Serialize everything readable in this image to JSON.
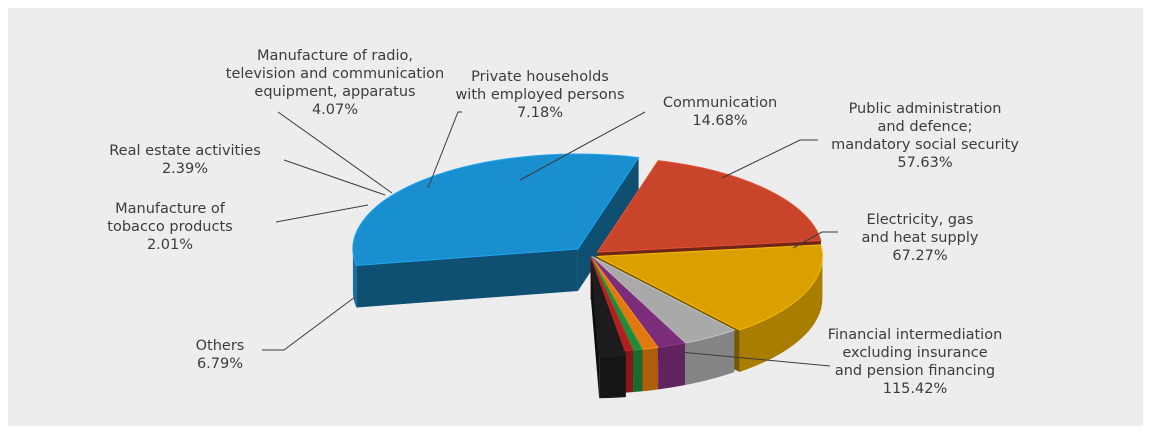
{
  "chart_data": {
    "type": "pie",
    "title": "",
    "legend": "none",
    "slices": [
      {
        "label": "Financial intermediation\nexcluding insurance\nand pension financing",
        "value_label": "115.42%",
        "value": 115.42,
        "color": "#1a8fd0"
      },
      {
        "label": "Electricity, gas\nand heat supply",
        "value_label": "67.27%",
        "value": 67.27,
        "color": "#c8452b"
      },
      {
        "label": "Public administration\nand defence;\nmandatory social security",
        "value_label": "57.63%",
        "value": 57.63,
        "color": "#d9a000"
      },
      {
        "label": "Communication",
        "value_label": "14.68%",
        "value": 14.68,
        "color": "#a9a9a9"
      },
      {
        "label": "Private households\nwith employed persons",
        "value_label": "7.18%",
        "value": 7.18,
        "color": "#7b2d7a"
      },
      {
        "label": "Manufacture of radio,\ntelevision and communication\nequipment, apparatus",
        "value_label": "4.07%",
        "value": 4.07,
        "color": "#e07a10"
      },
      {
        "label": "Real estate activities",
        "value_label": "2.39%",
        "value": 2.39,
        "color": "#1e8a3a"
      },
      {
        "label": "Manufacture of\ntobacco products",
        "value_label": "2.01%",
        "value": 2.01,
        "color": "#b01e1e"
      },
      {
        "label": "Others",
        "value_label": "6.79%",
        "value": 6.79,
        "color": "#1c1c1c"
      }
    ]
  }
}
